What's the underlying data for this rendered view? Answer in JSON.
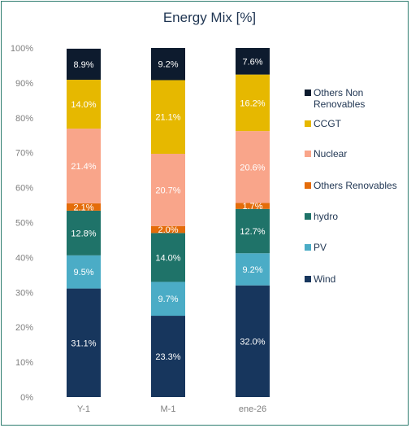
{
  "chart_data": {
    "type": "bar",
    "stacked": true,
    "title": "Energy Mix [%]",
    "categories": [
      "Y-1",
      "M-1",
      "ene-26"
    ],
    "ylim": [
      0,
      100
    ],
    "yticks": [
      "0%",
      "10%",
      "20%",
      "30%",
      "40%",
      "50%",
      "60%",
      "70%",
      "80%",
      "90%",
      "100%"
    ],
    "grid": false,
    "legend_position": "right",
    "series": [
      {
        "name": "Wind",
        "color": "#17365d",
        "label_color": "#ffffff",
        "values": [
          31.1,
          23.3,
          32.0
        ],
        "labels": [
          "31.1%",
          "23.3%",
          "32.0%"
        ]
      },
      {
        "name": "PV",
        "color": "#4bacc6",
        "label_color": "#ffffff",
        "values": [
          9.5,
          9.7,
          9.2
        ],
        "labels": [
          "9.5%",
          "9.7%",
          "9.2%"
        ]
      },
      {
        "name": "hydro",
        "color": "#1f7369",
        "label_color": "#ffffff",
        "values": [
          12.8,
          14.0,
          12.7
        ],
        "labels": [
          "12.8%",
          "14.0%",
          "12.7%"
        ]
      },
      {
        "name": "Others Renovables",
        "color": "#e46c0a",
        "label_color": "#ffffff",
        "values": [
          2.1,
          2.0,
          1.7
        ],
        "labels": [
          "2.1%",
          "2.0%",
          "1.7%"
        ]
      },
      {
        "name": "Nuclear",
        "color": "#f9a58a",
        "label_color": "#ffffff",
        "values": [
          21.4,
          20.7,
          20.6
        ],
        "labels": [
          "21.4%",
          "20.7%",
          "20.6%"
        ]
      },
      {
        "name": "CCGT",
        "color": "#e6b800",
        "label_color": "#ffffff",
        "values": [
          14.0,
          21.1,
          16.2
        ],
        "labels": [
          "14.0%",
          "21.1%",
          "16.2%"
        ]
      },
      {
        "name": "Others Non Renovables",
        "color": "#0d1b2e",
        "label_color": "#ffffff",
        "values": [
          8.9,
          9.2,
          7.6
        ],
        "labels": [
          "8.9%",
          "9.2%",
          "7.6%"
        ]
      }
    ],
    "legend_order": [
      "Others Non Renovables",
      "CCGT",
      "Nuclear",
      "Others Renovables",
      "hydro",
      "PV",
      "Wind"
    ],
    "legend_lines": {
      "Others Non Renovables": [
        "Others Non",
        "Renovables"
      ]
    }
  }
}
